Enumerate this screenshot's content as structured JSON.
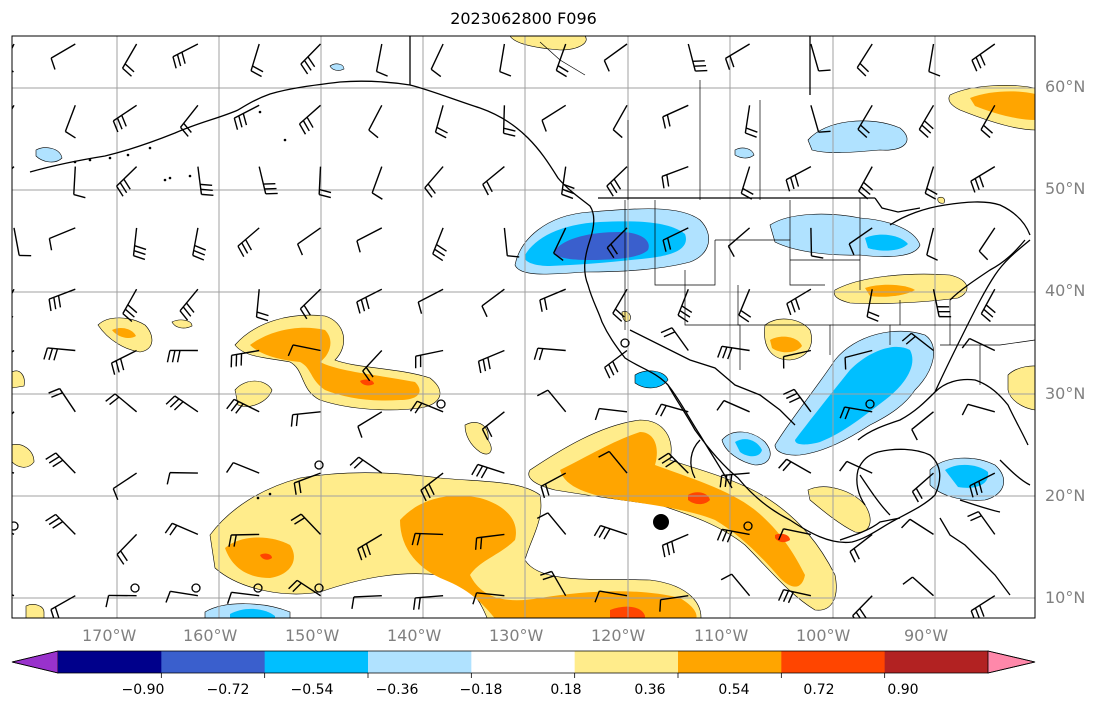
{
  "title": "2023062800 F096",
  "axes": {
    "lon_labels": [
      "170°W",
      "160°W",
      "150°W",
      "140°W",
      "130°W",
      "120°W",
      "110°W",
      "100°W",
      "90°W"
    ],
    "lat_labels": [
      "60°N",
      "50°N",
      "40°N",
      "30°N",
      "20°N",
      "10°N"
    ]
  },
  "colorbar": {
    "ticks": [
      "−0.90",
      "−0.72",
      "−0.54",
      "−0.36",
      "−0.18",
      "0.18",
      "0.36",
      "0.54",
      "0.72",
      "0.90"
    ],
    "colors": [
      "#9932cc",
      "#00008b",
      "#3a5fcd",
      "#00bfff",
      "#b0e2ff",
      "#ffffff",
      "#ffec8b",
      "#ffa500",
      "#ff4500",
      "#b22222",
      "#ff88aa"
    ]
  },
  "palette": {
    "coast": "#000000",
    "grid": "#a0a0a0"
  }
}
